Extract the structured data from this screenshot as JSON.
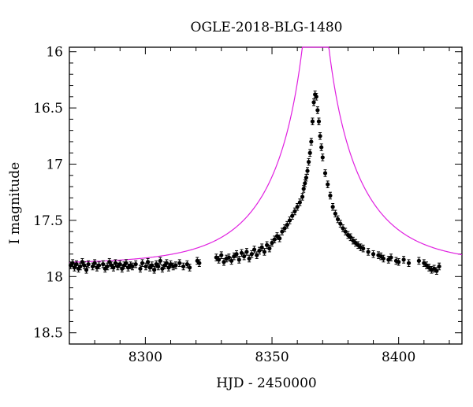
{
  "chart_data": {
    "type": "scatter",
    "title": "OGLE-2018-BLG-1480",
    "xlabel": "HJD - 2450000",
    "ylabel": "I magnitude",
    "xlim": [
      8270,
      8425
    ],
    "ylim": [
      18.6,
      15.96
    ],
    "y_inverted": true,
    "xticks": [
      {
        "value": 8300,
        "label": "8300"
      },
      {
        "value": 8350,
        "label": "8350"
      },
      {
        "value": 8400,
        "label": "8400"
      }
    ],
    "yticks": [
      {
        "value": 16,
        "label": "16"
      },
      {
        "value": 16.5,
        "label": "16.5"
      },
      {
        "value": 17,
        "label": "17"
      },
      {
        "value": 17.5,
        "label": "17.5"
      },
      {
        "value": 18,
        "label": "18"
      },
      {
        "value": 18.5,
        "label": "18.5"
      }
    ],
    "grid": false,
    "colors": {
      "points": "#000000",
      "model": "#e020e0",
      "frame": "#000000"
    },
    "model": {
      "t0": 8367.2,
      "u0": 0.05,
      "tE": 32,
      "I_base": 17.89
    },
    "series": [
      {
        "style": "points-with-errorbars",
        "x": [
          8270.5,
          8271.3,
          8272.0,
          8272.8,
          8273.6,
          8274.3,
          8275.1,
          8275.9,
          8276.7,
          8277.5,
          8279.2,
          8280.0,
          8280.9,
          8281.7,
          8283.3,
          8284.1,
          8285.0,
          8285.8,
          8286.6,
          8287.4,
          8288.2,
          8289.1,
          8290.0,
          8290.8,
          8291.6,
          8292.4,
          8293.2,
          8294.1,
          8294.9,
          8296.2,
          8298.0,
          8298.8,
          8300.2,
          8301.0,
          8301.8,
          8302.6,
          8303.5,
          8304.3,
          8305.1,
          8305.9,
          8306.7,
          8307.6,
          8308.4,
          8309.2,
          8310.0,
          8311.0,
          8312.0,
          8313.5,
          8315.0,
          8316.5,
          8317.5,
          8320.5,
          8321.3,
          8328.0,
          8329.0,
          8330.0,
          8331.0,
          8332.0,
          8333.0,
          8334.0,
          8335.0,
          8336.0,
          8337.0,
          8338.0,
          8339.0,
          8340.0,
          8341.0,
          8342.0,
          8343.0,
          8344.0,
          8345.0,
          8346.0,
          8347.0,
          8348.0,
          8349.0,
          8350.0,
          8351.0,
          8352.0,
          8353.0,
          8354.0,
          8355.0,
          8356.0,
          8357.0,
          8358.0,
          8359.0,
          8360.0,
          8361.0,
          8362.0,
          8362.5,
          8363.0,
          8363.5,
          8364.0,
          8364.5,
          8365.0,
          8365.5,
          8366.0,
          8366.5,
          8367.0,
          8367.5,
          8368.0,
          8368.5,
          8369.0,
          8369.5,
          8370.0,
          8371.0,
          8372.0,
          8373.0,
          8374.0,
          8375.0,
          8376.0,
          8377.0,
          8378.0,
          8379.0,
          8380.0,
          8381.0,
          8382.0,
          8383.0,
          8384.0,
          8385.0,
          8386.0,
          8388.0,
          8390.0,
          8392.0,
          8393.0,
          8394.0,
          8396.0,
          8397.0,
          8399.0,
          8400.0,
          8402.0,
          8404.0,
          8408.0,
          8410.0,
          8411.0,
          8412.0,
          8413.0,
          8414.0,
          8415.0,
          8416.0
        ],
        "y": [
          17.9,
          17.88,
          17.92,
          17.89,
          17.93,
          17.91,
          17.87,
          17.9,
          17.94,
          17.89,
          17.91,
          17.88,
          17.92,
          17.9,
          17.89,
          17.93,
          17.91,
          17.87,
          17.9,
          17.92,
          17.88,
          17.91,
          17.89,
          17.93,
          17.9,
          17.88,
          17.92,
          17.9,
          17.91,
          17.89,
          17.93,
          17.88,
          17.91,
          17.87,
          17.92,
          17.9,
          17.94,
          17.89,
          17.91,
          17.86,
          17.93,
          17.9,
          17.88,
          17.92,
          17.89,
          17.91,
          17.9,
          17.88,
          17.91,
          17.89,
          17.92,
          17.86,
          17.88,
          17.83,
          17.85,
          17.81,
          17.87,
          17.84,
          17.83,
          17.86,
          17.82,
          17.8,
          17.85,
          17.79,
          17.82,
          17.78,
          17.84,
          17.8,
          17.76,
          17.81,
          17.77,
          17.74,
          17.78,
          17.72,
          17.75,
          17.7,
          17.67,
          17.64,
          17.66,
          17.6,
          17.57,
          17.54,
          17.5,
          17.46,
          17.42,
          17.38,
          17.34,
          17.29,
          17.22,
          17.17,
          17.12,
          17.06,
          16.98,
          16.9,
          16.8,
          16.62,
          16.45,
          16.38,
          16.4,
          16.52,
          16.62,
          16.75,
          16.85,
          16.94,
          17.08,
          17.18,
          17.28,
          17.38,
          17.44,
          17.49,
          17.53,
          17.57,
          17.6,
          17.63,
          17.65,
          17.68,
          17.7,
          17.72,
          17.74,
          17.75,
          17.78,
          17.8,
          17.81,
          17.82,
          17.84,
          17.85,
          17.83,
          17.86,
          17.87,
          17.85,
          17.88,
          17.86,
          17.88,
          17.9,
          17.92,
          17.94,
          17.93,
          17.95,
          17.91
        ],
        "err": [
          0.03,
          0.03,
          0.03,
          0.03,
          0.03,
          0.03,
          0.03,
          0.03,
          0.03,
          0.03,
          0.03,
          0.03,
          0.03,
          0.03,
          0.03,
          0.03,
          0.03,
          0.03,
          0.03,
          0.03,
          0.03,
          0.03,
          0.03,
          0.03,
          0.03,
          0.03,
          0.03,
          0.03,
          0.03,
          0.03,
          0.03,
          0.03,
          0.03,
          0.03,
          0.03,
          0.03,
          0.03,
          0.03,
          0.03,
          0.03,
          0.03,
          0.03,
          0.03,
          0.03,
          0.03,
          0.03,
          0.03,
          0.03,
          0.03,
          0.03,
          0.03,
          0.03,
          0.03,
          0.03,
          0.03,
          0.03,
          0.03,
          0.03,
          0.03,
          0.03,
          0.03,
          0.03,
          0.03,
          0.03,
          0.03,
          0.03,
          0.03,
          0.03,
          0.03,
          0.03,
          0.03,
          0.03,
          0.03,
          0.03,
          0.03,
          0.03,
          0.03,
          0.03,
          0.03,
          0.03,
          0.03,
          0.03,
          0.03,
          0.03,
          0.03,
          0.03,
          0.03,
          0.03,
          0.03,
          0.03,
          0.03,
          0.03,
          0.03,
          0.03,
          0.03,
          0.03,
          0.03,
          0.03,
          0.03,
          0.03,
          0.03,
          0.03,
          0.03,
          0.03,
          0.03,
          0.03,
          0.03,
          0.03,
          0.03,
          0.03,
          0.03,
          0.03,
          0.03,
          0.03,
          0.03,
          0.03,
          0.03,
          0.03,
          0.03,
          0.03,
          0.03,
          0.03,
          0.03,
          0.03,
          0.03,
          0.03,
          0.03,
          0.03,
          0.03,
          0.03,
          0.03,
          0.03,
          0.03,
          0.03,
          0.03,
          0.03,
          0.03,
          0.03,
          0.03
        ]
      }
    ]
  }
}
